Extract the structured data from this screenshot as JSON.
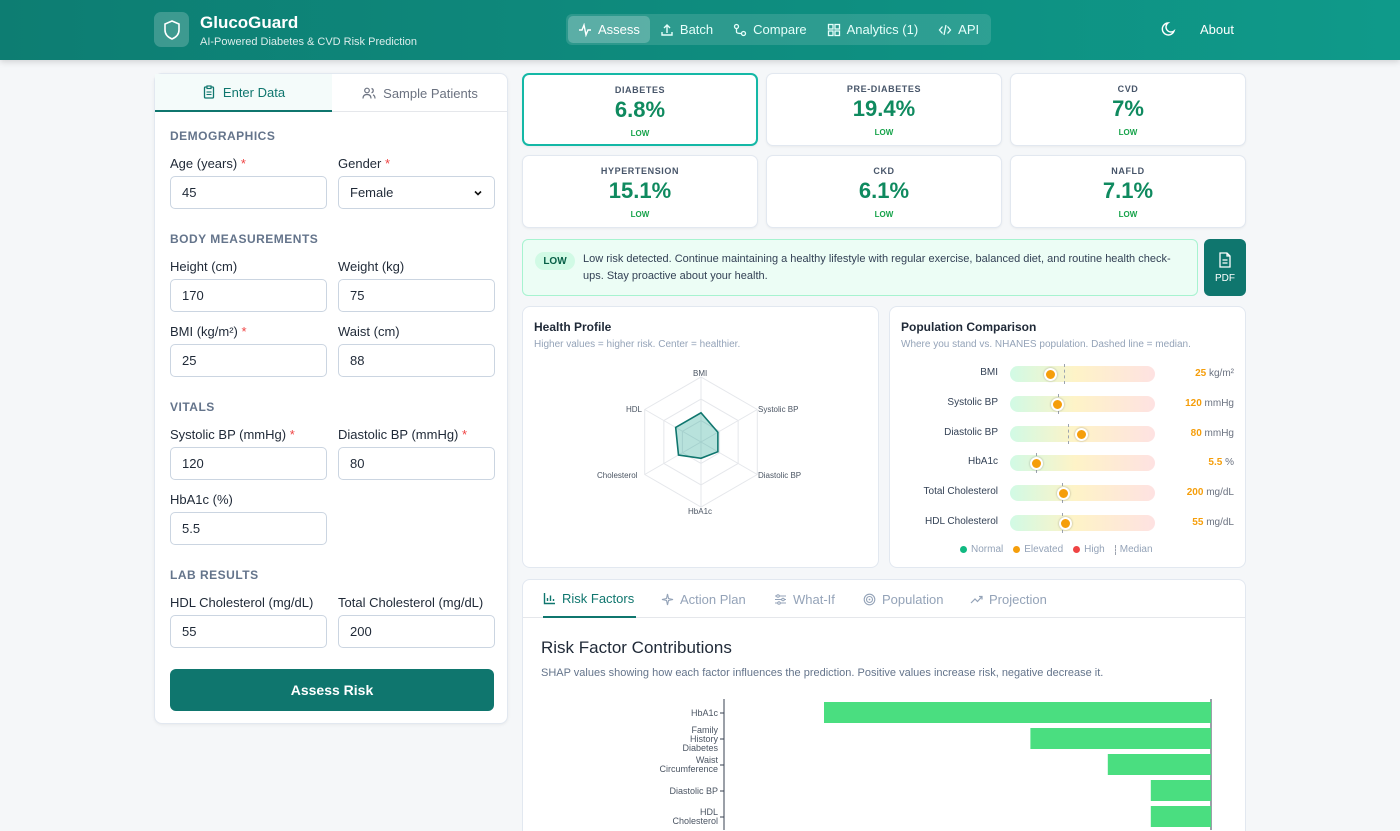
{
  "app": {
    "name": "GlucoGuard",
    "tagline": "AI-Powered Diabetes & CVD Risk Prediction"
  },
  "nav": {
    "items": [
      {
        "label": "Assess",
        "icon": "activity-icon",
        "active": true
      },
      {
        "label": "Batch",
        "icon": "upload-icon"
      },
      {
        "label": "Compare",
        "icon": "compare-icon"
      },
      {
        "label": "Analytics (1)",
        "icon": "grid-icon"
      },
      {
        "label": "API",
        "icon": "code-icon"
      }
    ],
    "about": "About"
  },
  "form": {
    "tabs": {
      "enter": "Enter Data",
      "sample": "Sample Patients"
    },
    "sections": {
      "demographics": "DEMOGRAPHICS",
      "body": "BODY MEASUREMENTS",
      "vitals": "VITALS",
      "labs": "LAB RESULTS"
    },
    "fields": {
      "age": {
        "label": "Age (years)",
        "value": "45",
        "required": "*"
      },
      "gender": {
        "label": "Gender",
        "value": "Female",
        "required": "*"
      },
      "height": {
        "label": "Height (cm)",
        "value": "170"
      },
      "weight": {
        "label": "Weight (kg)",
        "value": "75"
      },
      "bmi": {
        "label": "BMI (kg/m²)",
        "value": "25",
        "required": "*"
      },
      "waist": {
        "label": "Waist (cm)",
        "value": "88"
      },
      "systolic": {
        "label": "Systolic BP (mmHg)",
        "value": "120",
        "required": "*"
      },
      "diastolic": {
        "label": "Diastolic BP (mmHg)",
        "value": "80",
        "required": "*"
      },
      "hba1c": {
        "label": "HbA1c (%)",
        "value": "5.5"
      },
      "hdl": {
        "label": "HDL Cholesterol (mg/dL)",
        "value": "55"
      },
      "total_chol": {
        "label": "Total Cholesterol (mg/dL)",
        "value": "200"
      }
    },
    "submit": "Assess Risk"
  },
  "risks": [
    {
      "name": "DIABETES",
      "value": "6.8%",
      "level": "LOW"
    },
    {
      "name": "PRE-DIABETES",
      "value": "19.4%",
      "level": "LOW"
    },
    {
      "name": "CVD",
      "value": "7%",
      "level": "LOW"
    },
    {
      "name": "HYPERTENSION",
      "value": "15.1%",
      "level": "LOW"
    },
    {
      "name": "CKD",
      "value": "6.1%",
      "level": "LOW"
    },
    {
      "name": "NAFLD",
      "value": "7.1%",
      "level": "LOW"
    }
  ],
  "banner": {
    "badge": "LOW",
    "text": "Low risk detected. Continue maintaining a healthy lifestyle with regular exercise, balanced diet, and routine health check-ups. Stay proactive about your health.",
    "pdf": "PDF"
  },
  "health_profile": {
    "title": "Health Profile",
    "subtitle": "Higher values = higher risk. Center = healthier.",
    "axes": [
      "BMI",
      "Systolic BP",
      "Diastolic BP",
      "HbA1c",
      "Cholesterol",
      "HDL"
    ],
    "values": [
      0.45,
      0.3,
      0.3,
      0.25,
      0.4,
      0.45
    ]
  },
  "population": {
    "title": "Population Comparison",
    "subtitle": "Where you stand vs. NHANES population. Dashed line = median.",
    "rows": [
      {
        "name": "BMI",
        "value": "25",
        "unit": "kg/m²",
        "pos": 0.28,
        "median": 0.37
      },
      {
        "name": "Systolic BP",
        "value": "120",
        "unit": "mmHg",
        "pos": 0.33,
        "median": 0.33
      },
      {
        "name": "Diastolic BP",
        "value": "80",
        "unit": "mmHg",
        "pos": 0.49,
        "median": 0.4
      },
      {
        "name": "HbA1c",
        "value": "5.5",
        "unit": "%",
        "pos": 0.18,
        "median": 0.18
      },
      {
        "name": "Total Cholesterol",
        "value": "200",
        "unit": "mg/dL",
        "pos": 0.37,
        "median": 0.36
      },
      {
        "name": "HDL Cholesterol",
        "value": "55",
        "unit": "mg/dL",
        "pos": 0.38,
        "median": 0.36
      }
    ],
    "legend": {
      "normal": "Normal",
      "elevated": "Elevated",
      "high": "High",
      "median": "Median"
    },
    "colors": {
      "normal": "#10b981",
      "elevated": "#f59e0b",
      "high": "#ef4444"
    }
  },
  "analysis_tabs": [
    {
      "label": "Risk Factors",
      "icon": "bar-chart-icon",
      "active": true
    },
    {
      "label": "Action Plan",
      "icon": "sparkle-icon"
    },
    {
      "label": "What-If",
      "icon": "sliders-icon"
    },
    {
      "label": "Population",
      "icon": "target-icon"
    },
    {
      "label": "Projection",
      "icon": "trend-icon"
    }
  ],
  "risk_factors": {
    "title": "Risk Factor Contributions",
    "subtitle": "SHAP values showing how each factor influences the prediction. Positive values increase risk, negative decrease it."
  },
  "chart_data": {
    "type": "bar",
    "orientation": "horizontal",
    "categories": [
      "HbA1c",
      "Family History Diabetes",
      "Waist Circumference",
      "Diastolic BP",
      "HDL Cholesterol"
    ],
    "values": [
      -0.45,
      -0.21,
      -0.12,
      -0.07,
      -0.07
    ],
    "bar_color": "#4ade80"
  }
}
